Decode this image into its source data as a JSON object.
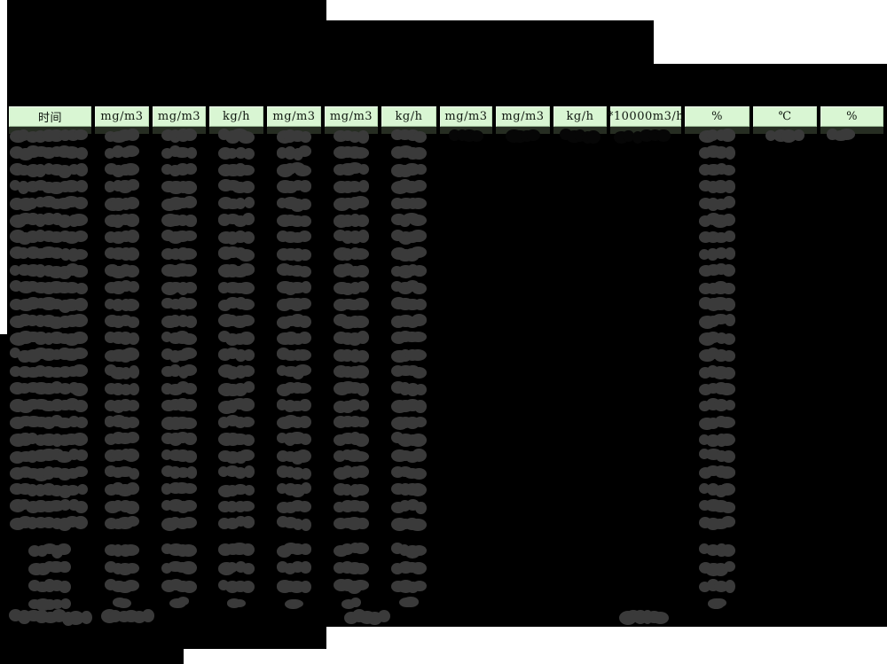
{
  "report": {
    "title_visible": false,
    "colors": {
      "page_bg": "#ffffff",
      "background_mask": "#000000",
      "header_bg": "#d9f6d3",
      "header_text": "#101810",
      "under_header_band": "#262d22",
      "redaction_blob": "#3a3a3a"
    },
    "table": {
      "header_units": [
        "时间",
        "mg/m3",
        "mg/m3",
        "kg/h",
        "mg/m3",
        "mg/m3",
        "kg/h",
        "mg/m3",
        "mg/m3",
        "kg/h",
        "*10000m3/h",
        "%",
        "℃",
        "%"
      ],
      "data_row_count": 24,
      "first_data_row_gray_columns": [
        0,
        1,
        2,
        3,
        4,
        5,
        6,
        11,
        12,
        13
      ],
      "first_data_row_dark_columns": [
        7,
        8,
        9,
        10
      ],
      "data_row_redacted_columns": [
        0,
        1,
        2,
        3,
        4,
        5,
        6,
        11
      ],
      "summary_row_count": 4,
      "summary_row_redacted_columns": [
        0,
        1,
        2,
        3,
        4,
        5,
        6,
        11
      ],
      "footer_note_redacted": true
    }
  }
}
